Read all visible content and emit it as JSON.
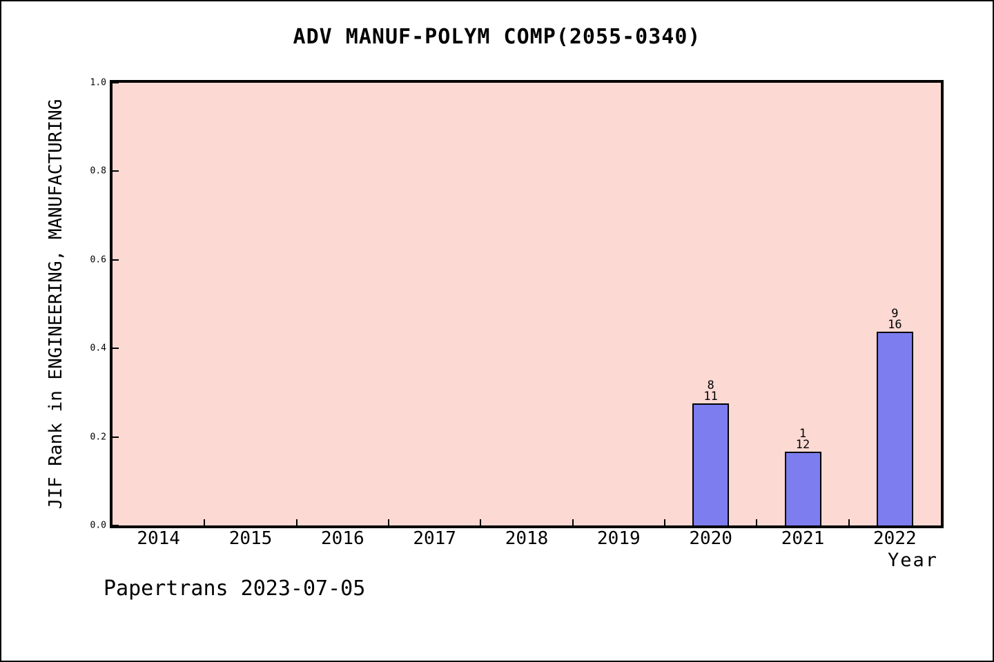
{
  "header": {
    "title": "ADV MANUF-POLYM COMP(2055-0340)"
  },
  "footer": {
    "credit": "Papertrans 2023-07-05"
  },
  "chart_data": {
    "type": "bar",
    "title": "ADV MANUF-POLYM COMP(2055-0340)",
    "xlabel": "Year",
    "ylabel": "JIF Rank in ENGINEERING, MANUFACTURING",
    "categories": [
      "2014",
      "2015",
      "2016",
      "2017",
      "2018",
      "2019",
      "2020",
      "2021",
      "2022"
    ],
    "values": [
      null,
      null,
      null,
      null,
      null,
      null,
      0.276,
      0.167,
      0.438
    ],
    "bar_labels": [
      null,
      null,
      null,
      null,
      null,
      null,
      [
        "8",
        "11"
      ],
      [
        "1",
        "12"
      ],
      [
        "9",
        "16"
      ]
    ],
    "ylim": [
      0.0,
      1.0
    ],
    "yticks": [
      "0.0",
      "0.2",
      "0.4",
      "0.6",
      "0.8",
      "1.0"
    ],
    "grid": false,
    "legend": null,
    "xtick_style": "inward ticks at category boundaries",
    "colors": {
      "plot_background": "#fcd9d3",
      "page_background": "#ffffff",
      "bar_fill": "#7d7df0",
      "bar_edge": "#000000",
      "axis": "#000000",
      "text": "#000000"
    }
  }
}
